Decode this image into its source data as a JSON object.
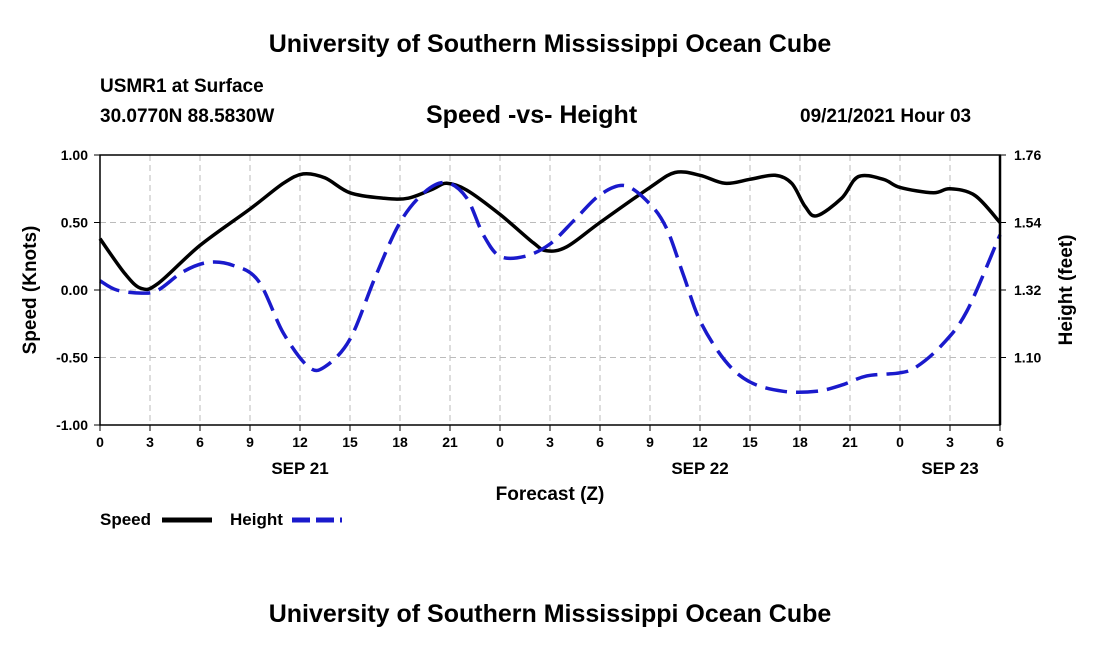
{
  "header": {
    "title": "University of Southern Mississippi Ocean Cube",
    "station": "USMR1 at Surface",
    "coords": "30.0770N  88.5830W",
    "chart_title": "Speed -vs- Height",
    "forecast_time": "09/21/2021 Hour 03"
  },
  "footer": {
    "title": "University of Southern Mississippi Ocean Cube"
  },
  "colors": {
    "speed": "#000000",
    "height": "#1a1acc",
    "grid": "#bbbbbb"
  },
  "chart_data": {
    "type": "line",
    "title": "Speed -vs- Height",
    "xlabel": "Forecast (Z)",
    "ylabel": "Speed (Knots)",
    "y2label": "Height (feet)",
    "xlim": [
      0,
      54
    ],
    "ylim": [
      -1.0,
      1.0
    ],
    "y2lim": [
      0.88,
      1.76
    ],
    "x_ticks": [
      0,
      3,
      6,
      9,
      12,
      15,
      18,
      21,
      24,
      27,
      30,
      33,
      36,
      39,
      42,
      45,
      48,
      51,
      54
    ],
    "x_tick_labels": [
      "0",
      "3",
      "6",
      "9",
      "12",
      "15",
      "18",
      "21",
      "0",
      "3",
      "6",
      "9",
      "12",
      "15",
      "18",
      "21",
      "0",
      "3",
      "6"
    ],
    "y_ticks": [
      -1.0,
      -0.5,
      0.0,
      0.5,
      1.0
    ],
    "y_tick_labels": [
      "-1.00",
      "-0.50",
      "0.00",
      "0.50",
      "1.00"
    ],
    "y2_ticks": [
      1.1,
      1.32,
      1.54,
      1.76
    ],
    "y2_tick_labels": [
      "1.10",
      "1.32",
      "1.54",
      "1.76"
    ],
    "day_labels": [
      {
        "x": 12,
        "label": "SEP 21"
      },
      {
        "x": 36,
        "label": "SEP 22"
      },
      {
        "x": 51,
        "label": "SEP 23"
      }
    ],
    "grid": true,
    "legend_position": "bottom-left",
    "series": [
      {
        "name": "Speed",
        "axis": "left",
        "style": "solid",
        "x": [
          0,
          1.5,
          2.5,
          3.5,
          6,
          9,
          11,
          12.2,
          13.5,
          15,
          17,
          18.5,
          20,
          20.8,
          22,
          24,
          26,
          26.8,
          28,
          30,
          33,
          34.5,
          36,
          37.5,
          39,
          40.5,
          41.5,
          42.3,
          43,
          44.5,
          45.5,
          47,
          48,
          50,
          51,
          52.5,
          54
        ],
        "values": [
          0.38,
          0.12,
          0.01,
          0.05,
          0.33,
          0.6,
          0.79,
          0.86,
          0.83,
          0.72,
          0.68,
          0.68,
          0.75,
          0.79,
          0.74,
          0.56,
          0.35,
          0.29,
          0.32,
          0.5,
          0.76,
          0.87,
          0.85,
          0.79,
          0.82,
          0.85,
          0.79,
          0.62,
          0.55,
          0.68,
          0.84,
          0.82,
          0.76,
          0.72,
          0.75,
          0.7,
          0.5
        ]
      },
      {
        "name": "Height",
        "axis": "right",
        "style": "dashed",
        "x": [
          0,
          1,
          2.5,
          3.5,
          5,
          6.5,
          8,
          9.5,
          11,
          12.5,
          13.5,
          15,
          16.5,
          18,
          19.5,
          20.8,
          22,
          23,
          24,
          25.5,
          27,
          28.5,
          30,
          31.5,
          33,
          34,
          35,
          36,
          37.5,
          39,
          41,
          43,
          44.5,
          46,
          48,
          49,
          50.5,
          52,
          54
        ],
        "values": [
          1.35,
          1.32,
          1.31,
          1.32,
          1.38,
          1.41,
          1.4,
          1.35,
          1.18,
          1.07,
          1.07,
          1.16,
          1.36,
          1.54,
          1.64,
          1.67,
          1.62,
          1.5,
          1.43,
          1.43,
          1.47,
          1.55,
          1.63,
          1.66,
          1.6,
          1.52,
          1.37,
          1.22,
          1.09,
          1.02,
          0.99,
          0.99,
          1.01,
          1.04,
          1.05,
          1.07,
          1.14,
          1.25,
          1.5
        ]
      }
    ]
  }
}
